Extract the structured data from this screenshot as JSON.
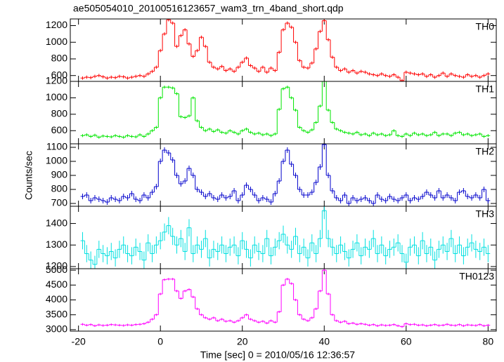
{
  "title": "ae505054010_20100516123657_wam3_trn_4band_short.qdp",
  "xlabel": "Time [sec] 0 = 2010/05/16 12:36:57",
  "ylabel": "Counts/sec",
  "xlim": [
    -22,
    82
  ],
  "xticks": [
    -20,
    0,
    20,
    40,
    60,
    80
  ],
  "x": [
    -19,
    -18,
    -17,
    -16,
    -15,
    -14,
    -13,
    -12,
    -11,
    -10,
    -9,
    -8,
    -7,
    -6,
    -5,
    -4,
    -3,
    -2,
    -1,
    0,
    1,
    2,
    3,
    4,
    5,
    6,
    7,
    8,
    9,
    10,
    11,
    12,
    13,
    14,
    15,
    16,
    17,
    18,
    19,
    20,
    21,
    22,
    23,
    24,
    25,
    26,
    27,
    28,
    29,
    30,
    31,
    32,
    33,
    34,
    35,
    36,
    37,
    38,
    39,
    40,
    41,
    42,
    43,
    44,
    45,
    46,
    47,
    48,
    49,
    50,
    51,
    52,
    53,
    54,
    55,
    56,
    57,
    58,
    59,
    60,
    61,
    62,
    63,
    64,
    65,
    66,
    67,
    68,
    69,
    70,
    71,
    72,
    73,
    74,
    75,
    76,
    77,
    78,
    79,
    80
  ],
  "chart_data": [
    {
      "type": "line",
      "label": "TH0",
      "color": "#ff0000",
      "error": 20,
      "ylim": [
        530,
        1280
      ],
      "yticks": [
        600,
        800,
        1000,
        1200
      ],
      "values": [
        570,
        580,
        575,
        590,
        600,
        585,
        570,
        580,
        575,
        590,
        585,
        570,
        580,
        590,
        600,
        590,
        620,
        650,
        700,
        900,
        1100,
        1270,
        1230,
        950,
        1080,
        1150,
        980,
        830,
        900,
        1060,
        950,
        760,
        700,
        680,
        710,
        660,
        680,
        650,
        700,
        760,
        810,
        720,
        690,
        650,
        700,
        640,
        690,
        660,
        880,
        1150,
        1230,
        1180,
        1000,
        780,
        700,
        690,
        750,
        920,
        1130,
        1260,
        1030,
        820,
        700,
        660,
        680,
        640,
        660,
        630,
        650,
        640,
        620,
        610,
        600,
        620,
        600,
        590,
        610,
        580,
        540,
        640,
        630,
        620,
        610,
        620,
        590,
        610,
        580,
        600,
        630,
        590,
        620,
        600,
        590,
        580,
        610,
        590,
        600,
        580,
        600,
        620
      ]
    },
    {
      "type": "line",
      "label": "TH1",
      "color": "#00e600",
      "error": 18,
      "ylim": [
        440,
        1200
      ],
      "yticks": [
        600,
        800,
        1000,
        1200
      ],
      "values": [
        540,
        550,
        530,
        545,
        520,
        535,
        530,
        525,
        540,
        530,
        520,
        540,
        530,
        525,
        550,
        530,
        560,
        600,
        640,
        1000,
        1130,
        1130,
        1120,
        1050,
        770,
        760,
        780,
        1000,
        720,
        640,
        600,
        620,
        590,
        610,
        580,
        570,
        600,
        580,
        560,
        600,
        620,
        580,
        560,
        570,
        550,
        560,
        540,
        560,
        860,
        1110,
        1130,
        1000,
        850,
        640,
        600,
        580,
        610,
        700,
        900,
        1200,
        850,
        700,
        620,
        600,
        580,
        570,
        560,
        580,
        550,
        560,
        540,
        570,
        550,
        560,
        540,
        550,
        600,
        540,
        530,
        560,
        540,
        570,
        550,
        560,
        540,
        550,
        580,
        540,
        560,
        560,
        540,
        570,
        580,
        550,
        560,
        540,
        550,
        560,
        530,
        540
      ]
    },
    {
      "type": "line",
      "label": "TH2",
      "color": "#0000cc",
      "error": 20,
      "ylim": [
        680,
        1125
      ],
      "yticks": [
        700,
        800,
        900,
        1000,
        1100
      ],
      "values": [
        750,
        760,
        720,
        740,
        730,
        720,
        710,
        740,
        730,
        720,
        750,
        740,
        770,
        730,
        720,
        760,
        740,
        780,
        820,
        1000,
        1080,
        1060,
        1010,
        900,
        840,
        860,
        950,
        900,
        800,
        780,
        750,
        770,
        740,
        730,
        760,
        740,
        750,
        790,
        720,
        760,
        830,
        800,
        760,
        720,
        740,
        730,
        710,
        770,
        860,
        1000,
        1080,
        980,
        900,
        800,
        760,
        760,
        780,
        850,
        960,
        1120,
        900,
        790,
        740,
        720,
        760,
        700,
        740,
        720,
        730,
        740,
        720,
        700,
        760,
        730,
        720,
        750,
        730,
        720,
        740,
        760,
        720,
        740,
        730,
        750,
        780,
        760,
        740,
        790,
        740,
        760,
        740,
        720,
        780,
        790,
        750,
        740,
        760,
        740,
        800,
        720
      ]
    },
    {
      "type": "line",
      "label": "TH3",
      "color": "#00e0e0",
      "error": 40,
      "ylim": [
        1190,
        1480
      ],
      "yticks": [
        1200,
        1300,
        1400
      ],
      "values": [
        1320,
        1260,
        1230,
        1210,
        1280,
        1260,
        1250,
        1270,
        1240,
        1280,
        1300,
        1260,
        1250,
        1290,
        1270,
        1230,
        1310,
        1260,
        1300,
        1320,
        1360,
        1390,
        1340,
        1300,
        1330,
        1270,
        1380,
        1260,
        1300,
        1280,
        1330,
        1240,
        1280,
        1270,
        1300,
        1260,
        1290,
        1300,
        1250,
        1320,
        1280,
        1240,
        1300,
        1270,
        1260,
        1330,
        1250,
        1290,
        1320,
        1350,
        1300,
        1280,
        1340,
        1260,
        1290,
        1240,
        1310,
        1260,
        1330,
        1460,
        1330,
        1290,
        1260,
        1300,
        1270,
        1240,
        1280,
        1310,
        1250,
        1290,
        1280,
        1330,
        1260,
        1300,
        1250,
        1280,
        1290,
        1310,
        1260,
        1220,
        1290,
        1300,
        1250,
        1320,
        1260,
        1290,
        1230,
        1280,
        1300,
        1270,
        1330,
        1260,
        1300,
        1250,
        1290,
        1310,
        1280,
        1270,
        1290,
        1260
      ]
    },
    {
      "type": "line",
      "label": "TH0123",
      "color": "#ff00ff",
      "error": 40,
      "ylim": [
        2950,
        5050
      ],
      "yticks": [
        3000,
        3500,
        4000,
        4500,
        5000
      ],
      "values": [
        3180,
        3150,
        3170,
        3130,
        3160,
        3140,
        3150,
        3170,
        3160,
        3150,
        3140,
        3160,
        3150,
        3170,
        3180,
        3200,
        3250,
        3350,
        3500,
        4200,
        4680,
        4700,
        4700,
        4300,
        4050,
        4300,
        4350,
        4100,
        3700,
        3500,
        3400,
        3350,
        3400,
        3300,
        3350,
        3280,
        3300,
        3250,
        3300,
        3400,
        3500,
        3350,
        3300,
        3250,
        3280,
        3220,
        3300,
        3250,
        3600,
        4500,
        4700,
        4550,
        4000,
        3500,
        3350,
        3300,
        3400,
        3700,
        4300,
        5000,
        4200,
        3500,
        3300,
        3250,
        3280,
        3200,
        3220,
        3180,
        3200,
        3180,
        3150,
        3170,
        3130,
        3160,
        3140,
        3150,
        3170,
        3130,
        3100,
        3200,
        3170,
        3180,
        3150,
        3160,
        3130,
        3150,
        3170,
        3140,
        3150,
        3180,
        3150,
        3140,
        3170,
        3130,
        3160,
        3150,
        3140,
        3170,
        3130,
        3150
      ]
    }
  ]
}
